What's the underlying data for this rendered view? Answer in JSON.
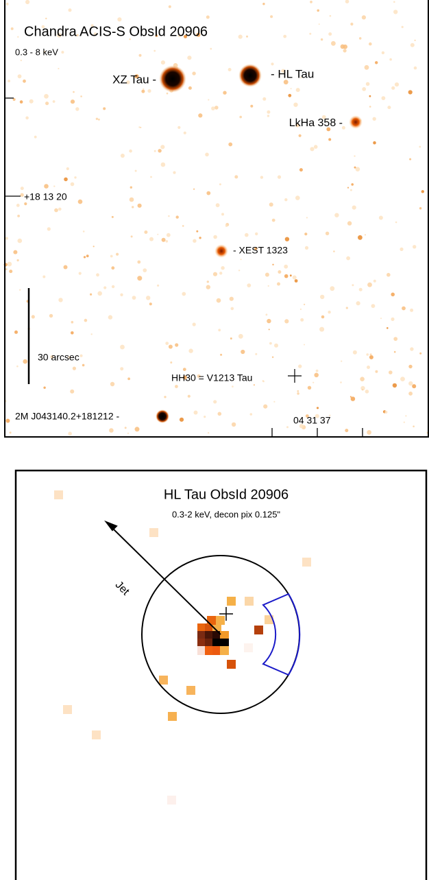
{
  "panel1": {
    "title": "Chandra ACIS-S ObsId 20906",
    "band": "0.3 - 8 keV",
    "sources": {
      "xz_tau": "XZ Tau -",
      "hl_tau": "- HL Tau",
      "lkha": "LkHa 358 -",
      "xest": "- XEST 1323",
      "hh30": "HH30 = V1213 Tau",
      "twomass": "2M J043140.2+181212 -"
    },
    "dec_label": "+18 13 20",
    "ra_label": "04 31 37",
    "scale_label": "30 arcsec"
  },
  "panel2": {
    "title": "HL Tau ObsId 20906",
    "subtitle": "0.3-2 keV, decon pix 0.125\"",
    "jet_label": "Jet"
  }
}
